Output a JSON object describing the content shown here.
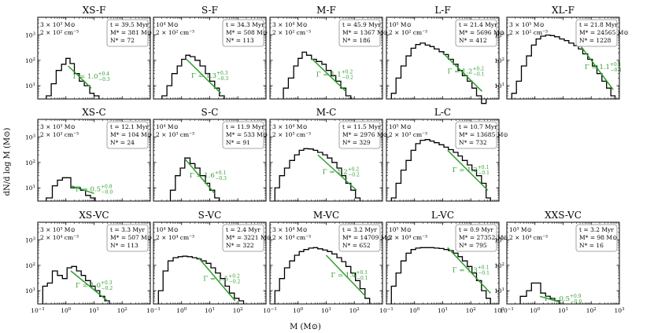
{
  "figure": {
    "xlabel": "M (M⊙)",
    "ylabel": "dN/d log M (M⊙)"
  },
  "chart_data": [
    {
      "type": "histogram",
      "title": "XS-F",
      "row": 0,
      "col": 0,
      "xscale": "log",
      "yscale": "log",
      "xlim": [
        0.1,
        1000
      ],
      "ylim": [
        3,
        5000
      ],
      "info_left": [
        "3 × 10³ M⊙",
        "2 × 10² cm⁻³"
      ],
      "info_right": [
        "t = 39.5 Myr",
        "M* = 381 M⊙",
        "N* = 72"
      ],
      "gamma_label": "Γ = 1.0+0.4−0.3",
      "fit": {
        "x": [
          1.2,
          8
        ],
        "y": [
          60,
          8
        ]
      },
      "hist": {
        "edges": [
          0.2,
          0.3,
          0.45,
          0.7,
          1,
          1.4,
          2,
          3,
          4.5,
          7,
          10,
          15
        ],
        "counts": [
          4,
          12,
          40,
          70,
          120,
          75,
          30,
          15,
          10,
          5,
          4
        ]
      }
    },
    {
      "type": "histogram",
      "title": "S-F",
      "row": 0,
      "col": 1,
      "xscale": "log",
      "yscale": "log",
      "xlim": [
        0.1,
        1000
      ],
      "ylim": [
        3,
        5000
      ],
      "info_left": [
        "10⁴ M⊙",
        "2 × 10² cm⁻³"
      ],
      "info_right": [
        "t = 34.3 Myr",
        "M* = 508 M⊙",
        "N* = 113"
      ],
      "gamma_label": "Γ = 1.3+0.3−0.3",
      "fit": {
        "x": [
          1.5,
          25
        ],
        "y": [
          110,
          5
        ]
      },
      "hist": {
        "edges": [
          0.2,
          0.3,
          0.45,
          0.7,
          1,
          1.4,
          2,
          3,
          4.5,
          7,
          10,
          15,
          22,
          33
        ],
        "counts": [
          4,
          10,
          30,
          60,
          110,
          160,
          140,
          100,
          60,
          30,
          15,
          8,
          4
        ]
      }
    },
    {
      "type": "histogram",
      "title": "M-F",
      "row": 0,
      "col": 2,
      "xscale": "log",
      "yscale": "log",
      "xlim": [
        0.1,
        1000
      ],
      "ylim": [
        3,
        5000
      ],
      "info_left": [
        "3 × 10⁴ M⊙",
        "2 × 10² cm⁻³"
      ],
      "info_right": [
        "t = 45.9 Myr",
        "M* = 1367 M⊙",
        "N* = 186"
      ],
      "gamma_label": "Γ = 1.1+0.2−0.2",
      "fit": {
        "x": [
          3,
          50
        ],
        "y": [
          120,
          6
        ]
      },
      "hist": {
        "edges": [
          0.3,
          0.45,
          0.7,
          1,
          1.4,
          2,
          3,
          4.5,
          7,
          10,
          15,
          22,
          33,
          50,
          75
        ],
        "counts": [
          8,
          20,
          60,
          120,
          210,
          160,
          110,
          90,
          70,
          40,
          25,
          15,
          8,
          4
        ]
      }
    },
    {
      "type": "histogram",
      "title": "L-F",
      "row": 0,
      "col": 3,
      "xscale": "log",
      "yscale": "log",
      "xlim": [
        0.1,
        1000
      ],
      "ylim": [
        3,
        5000
      ],
      "info_left": [
        "10⁵ M⊙",
        "2 × 10² cm⁻³"
      ],
      "info_right": [
        "t = 21.4 Myr",
        "M* = 5696 M⊙",
        "N* = 412"
      ],
      "gamma_label": "Γ = 1.2+0.2−0.1",
      "fit": {
        "x": [
          10,
          250
        ],
        "y": [
          200,
          6
        ]
      },
      "hist": {
        "edges": [
          0.15,
          0.22,
          0.33,
          0.5,
          0.75,
          1.1,
          1.6,
          2.4,
          3.5,
          5,
          7.5,
          11,
          16,
          24,
          35,
          50,
          75,
          110,
          160,
          240,
          350
        ],
        "counts": [
          5,
          20,
          60,
          150,
          300,
          420,
          480,
          400,
          350,
          280,
          220,
          170,
          110,
          70,
          40,
          25,
          15,
          8,
          4,
          2
        ]
      }
    },
    {
      "type": "histogram",
      "title": "XL-F",
      "row": 0,
      "col": 4,
      "xscale": "log",
      "yscale": "log",
      "xlim": [
        0.1,
        1000
      ],
      "ylim": [
        3,
        5000
      ],
      "info_left": [
        "3 × 10⁵ M⊙",
        "2 × 10² cm⁻³"
      ],
      "info_right": [
        "t = 21.8 Myr",
        "M* = 24565 M⊙",
        "N* = 1228"
      ],
      "gamma_label": "Γ = 1.1+0.1−0.1",
      "fit": {
        "x": [
          40,
          600
        ],
        "y": [
          400,
          7
        ]
      },
      "hist": {
        "edges": [
          0.15,
          0.22,
          0.33,
          0.5,
          0.75,
          1.1,
          1.6,
          2.4,
          3.5,
          5,
          7.5,
          11,
          16,
          24,
          35,
          50,
          75,
          110,
          160,
          240,
          350,
          500,
          700
        ],
        "counts": [
          5,
          15,
          60,
          150,
          400,
          700,
          900,
          1000,
          950,
          850,
          700,
          600,
          480,
          380,
          280,
          180,
          110,
          60,
          30,
          15,
          8,
          4
        ]
      }
    },
    {
      "type": "histogram",
      "title": "XS-C",
      "row": 1,
      "col": 0,
      "xscale": "log",
      "yscale": "log",
      "xlim": [
        0.1,
        1000
      ],
      "ylim": [
        3,
        5000
      ],
      "info_left": [
        "3 × 10³ M⊙",
        "2 × 10³ cm⁻³"
      ],
      "info_right": [
        "t = 12.1 Myr",
        "M* = 104 M⊙",
        "N* = 24"
      ],
      "gamma_label": "Γ = 0.5+0.8−0.0",
      "fit": {
        "x": [
          1.5,
          10
        ],
        "y": [
          12,
          6
        ]
      },
      "hist": {
        "edges": [
          0.2,
          0.33,
          0.5,
          0.75,
          1,
          1.5,
          2.2,
          3.3,
          5,
          7.5,
          11
        ],
        "counts": [
          4,
          12,
          20,
          25,
          25,
          10,
          10,
          8,
          5,
          4
        ]
      }
    },
    {
      "type": "histogram",
      "title": "S-C",
      "row": 1,
      "col": 1,
      "xscale": "log",
      "yscale": "log",
      "xlim": [
        0.1,
        1000
      ],
      "ylim": [
        3,
        5000
      ],
      "info_left": [
        "10⁴ M⊙",
        "2 × 10³ cm⁻³"
      ],
      "info_right": [
        "t = 11.9 Myr",
        "M* = 533 M⊙",
        "N* = 91"
      ],
      "gamma_label": "Γ = 1.6+0.1−0.3",
      "fit": {
        "x": [
          1.3,
          15
        ],
        "y": [
          140,
          6
        ]
      },
      "hist": {
        "edges": [
          0.4,
          0.6,
          0.9,
          1.3,
          2,
          3,
          4.5,
          7,
          10,
          15,
          22
        ],
        "counts": [
          8,
          30,
          60,
          150,
          90,
          60,
          30,
          15,
          8,
          4
        ]
      }
    },
    {
      "type": "histogram",
      "title": "M-C",
      "row": 1,
      "col": 2,
      "xscale": "log",
      "yscale": "log",
      "xlim": [
        0.1,
        1000
      ],
      "ylim": [
        3,
        5000
      ],
      "info_left": [
        "3 × 10⁴ M⊙",
        "2 × 10³ cm⁻³"
      ],
      "info_right": [
        "t = 11.5 Myr",
        "M* = 2976 M⊙",
        "N* = 329"
      ],
      "gamma_label": "Γ = 1.2+0.2−0.2",
      "fit": {
        "x": [
          5,
          120
        ],
        "y": [
          200,
          8
        ]
      },
      "hist": {
        "edges": [
          0.15,
          0.22,
          0.33,
          0.5,
          0.75,
          1.1,
          1.6,
          2.4,
          3.5,
          5,
          7.5,
          11,
          16,
          24,
          35,
          50,
          75,
          110,
          160
        ],
        "counts": [
          10,
          30,
          60,
          120,
          200,
          300,
          350,
          340,
          300,
          250,
          200,
          150,
          100,
          60,
          30,
          15,
          8,
          4
        ]
      }
    },
    {
      "type": "histogram",
      "title": "L-C",
      "row": 1,
      "col": 3,
      "xscale": "log",
      "yscale": "log",
      "xlim": [
        0.1,
        1000
      ],
      "ylim": [
        3,
        5000
      ],
      "info_left": [
        "10⁵ M⊙",
        "2 × 10³ cm⁻³"
      ],
      "info_right": [
        "t = 10.7 Myr",
        "M* = 13685 M⊙",
        "N* = 732"
      ],
      "gamma_label": "Γ = 1.2+0.1−0.1",
      "fit": {
        "x": [
          15,
          400
        ],
        "y": [
          300,
          8
        ]
      },
      "hist": {
        "edges": [
          0.15,
          0.22,
          0.33,
          0.5,
          0.75,
          1.1,
          1.6,
          2.4,
          3.5,
          5,
          7.5,
          11,
          16,
          24,
          35,
          50,
          75,
          110,
          160,
          240,
          350,
          500
        ],
        "counts": [
          4,
          15,
          50,
          120,
          300,
          550,
          750,
          800,
          700,
          600,
          500,
          400,
          320,
          250,
          180,
          120,
          80,
          50,
          30,
          15,
          4
        ]
      }
    },
    {
      "type": "histogram",
      "title": "XS-VC",
      "row": 2,
      "col": 0,
      "xscale": "log",
      "yscale": "log",
      "xlim": [
        0.1,
        1000
      ],
      "ylim": [
        3,
        5000
      ],
      "info_left": [
        "3 × 10³ M⊙",
        "2 × 10⁴ cm⁻³"
      ],
      "info_right": [
        "t = 3.3 Myr",
        "M* = 507 M⊙",
        "N* = 113"
      ],
      "gamma_label": "Γ = 1.0+0.3−0.2",
      "fit": {
        "x": [
          1.5,
          30
        ],
        "y": [
          60,
          4
        ]
      },
      "hist": {
        "edges": [
          0.15,
          0.22,
          0.33,
          0.5,
          0.75,
          1.1,
          1.6,
          2.4,
          3.5,
          5,
          7.5,
          11,
          16,
          24,
          35
        ],
        "counts": [
          15,
          20,
          60,
          40,
          30,
          80,
          90,
          60,
          40,
          25,
          15,
          10,
          6,
          4
        ]
      }
    },
    {
      "type": "histogram",
      "title": "S-VC",
      "row": 2,
      "col": 1,
      "xscale": "log",
      "yscale": "log",
      "xlim": [
        0.1,
        1000
      ],
      "ylim": [
        3,
        5000
      ],
      "info_left": [
        "10⁴ M⊙",
        "2 × 10⁴ cm⁻³"
      ],
      "info_right": [
        "t = 2.4 Myr",
        "M* = 3221 M⊙",
        "N* = 322"
      ],
      "gamma_label": "Γ = 1.5+0.2−0.2",
      "fit": {
        "x": [
          4,
          80
        ],
        "y": [
          200,
          4
        ]
      },
      "hist": {
        "edges": [
          0.15,
          0.22,
          0.33,
          0.5,
          0.75,
          1.1,
          1.6,
          2.4,
          3.5,
          5,
          7.5,
          11,
          16,
          24,
          35,
          50,
          75,
          110,
          160
        ],
        "counts": [
          10,
          60,
          150,
          200,
          220,
          230,
          220,
          200,
          180,
          150,
          120,
          80,
          50,
          30,
          15,
          8,
          5,
          4
        ]
      }
    },
    {
      "type": "histogram",
      "title": "M-VC",
      "row": 2,
      "col": 2,
      "xscale": "log",
      "yscale": "log",
      "xlim": [
        0.1,
        1000
      ],
      "ylim": [
        3,
        5000
      ],
      "info_left": [
        "3 × 10⁴ M⊙",
        "2 × 10⁴ cm⁻³"
      ],
      "info_right": [
        "t = 3.2 Myr",
        "M* = 14709 M⊙",
        "N* = 652"
      ],
      "gamma_label": "Γ = 1.4+0.1−0.1",
      "fit": {
        "x": [
          10,
          250
        ],
        "y": [
          250,
          6
        ]
      },
      "hist": {
        "edges": [
          0.15,
          0.22,
          0.33,
          0.5,
          0.75,
          1.1,
          1.6,
          2.4,
          3.5,
          5,
          7.5,
          11,
          16,
          24,
          35,
          50,
          75,
          110,
          160,
          240,
          350
        ],
        "counts": [
          10,
          30,
          80,
          150,
          250,
          350,
          420,
          480,
          500,
          450,
          400,
          350,
          280,
          200,
          140,
          90,
          50,
          25,
          12,
          5
        ]
      }
    },
    {
      "type": "histogram",
      "title": "L-VC",
      "row": 2,
      "col": 3,
      "xscale": "log",
      "yscale": "log",
      "xlim": [
        0.1,
        1000
      ],
      "ylim": [
        3,
        5000
      ],
      "info_left": [
        "10⁵ M⊙",
        "2 × 10⁴ cm⁻³"
      ],
      "info_right": [
        "t = 0.9 Myr",
        "M* = 27352 M⊙",
        "N* = 795"
      ],
      "gamma_label": "Γ = 1.3+0.1−0.1",
      "fit": {
        "x": [
          15,
          500
        ],
        "y": [
          500,
          8
        ]
      },
      "hist": {
        "edges": [
          0.15,
          0.22,
          0.33,
          0.5,
          0.75,
          1.1,
          1.6,
          2.4,
          3.5,
          5,
          7.5,
          11,
          16,
          24,
          35,
          50,
          75,
          110,
          160,
          240,
          350,
          500
        ],
        "counts": [
          15,
          50,
          150,
          300,
          420,
          480,
          500,
          500,
          500,
          480,
          460,
          420,
          380,
          300,
          220,
          150,
          90,
          50,
          25,
          10,
          5
        ]
      }
    },
    {
      "type": "histogram",
      "title": "XXS-VC",
      "row": 2,
      "col": 4,
      "xscale": "log",
      "yscale": "log",
      "xlim": [
        0.1,
        1000
      ],
      "ylim": [
        3,
        5000
      ],
      "info_left": [
        "10³ M⊙",
        "2 × 10⁴ cm⁻³"
      ],
      "info_right": [
        "t = 3.2 Myr",
        "M* = 98 M⊙",
        "N* = 16"
      ],
      "gamma_label": "Γ = 0.5+0.9−0.0",
      "fit": {
        "x": [
          1.5,
          8
        ],
        "y": [
          6,
          3.5
        ]
      },
      "hist": {
        "edges": [
          0.3,
          0.5,
          0.75,
          1.1,
          1.6,
          2.4,
          3.5,
          5,
          7.5
        ],
        "counts": [
          6,
          10,
          20,
          20,
          8,
          6,
          5,
          4
        ]
      }
    }
  ]
}
